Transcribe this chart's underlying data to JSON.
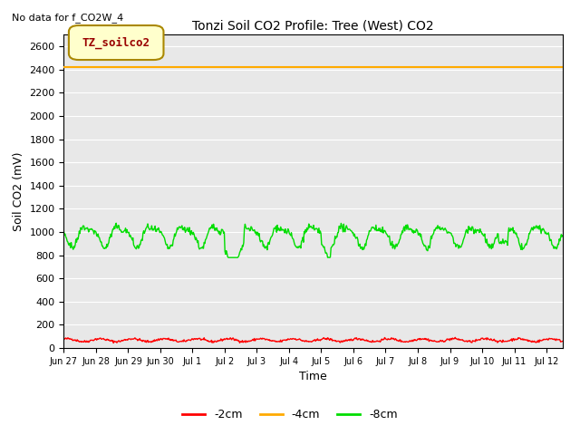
{
  "title": "Tonzi Soil CO2 Profile: Tree (West) CO2",
  "no_data_text": "No data for f_CO2W_4",
  "ylabel": "Soil CO2 (mV)",
  "xlabel": "Time",
  "legend_box_label": "TZ_soilco2",
  "ylim": [
    0,
    2700
  ],
  "yticks": [
    0,
    200,
    400,
    600,
    800,
    1000,
    1200,
    1400,
    1600,
    1800,
    2000,
    2200,
    2400,
    2600
  ],
  "bg_color": "#e8e8e8",
  "line_colors": {
    "2cm": "#ff0000",
    "4cm": "#ffaa00",
    "8cm": "#00dd00"
  },
  "line_labels": {
    "2cm": "-2cm",
    "4cm": "-4cm",
    "8cm": "-8cm"
  },
  "n_days": 15.5,
  "orange_value": 2420,
  "red_mean": 55,
  "red_amp": 25,
  "green_mean": 970,
  "green_amp": 80,
  "num_points": 744
}
